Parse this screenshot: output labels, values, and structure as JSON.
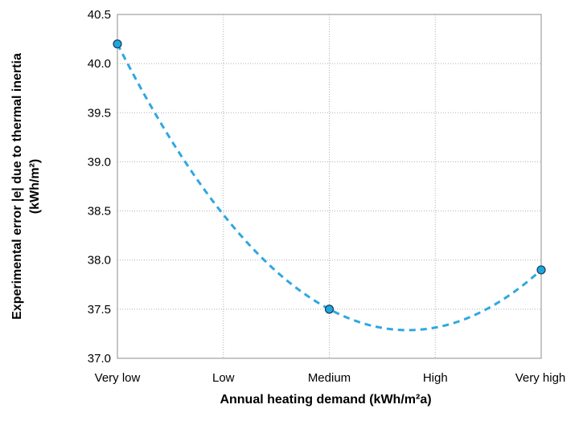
{
  "chart_data": {
    "type": "scatter",
    "title": "",
    "xlabel": "Annual heating demand (kWh/m²a)",
    "ylabel": "Experimental error |e| due to thermal inertia",
    "ylabel_unit": "(kWh/m²)",
    "categories": [
      "Very low",
      "Low",
      "Medium",
      "High",
      "Very high"
    ],
    "ylim": [
      37.0,
      40.5
    ],
    "yticks": [
      "37.0",
      "37.5",
      "38.0",
      "38.5",
      "39.0",
      "39.5",
      "40.0",
      "40.5"
    ],
    "grid": true,
    "legend": "none",
    "series": [
      {
        "points": [
          {
            "x": "Very low",
            "y": 40.2
          },
          {
            "x": "Medium",
            "y": 37.5
          },
          {
            "x": "Very high",
            "y": 37.9
          }
        ]
      }
    ],
    "trendline": {
      "type": "polynomial-2",
      "style": "dashed",
      "color": "#2ea8e0"
    },
    "colors": {
      "marker_fill": "#1ea7dc",
      "marker_stroke": "#1a3a5c",
      "trendline": "#2ea8e0"
    }
  }
}
